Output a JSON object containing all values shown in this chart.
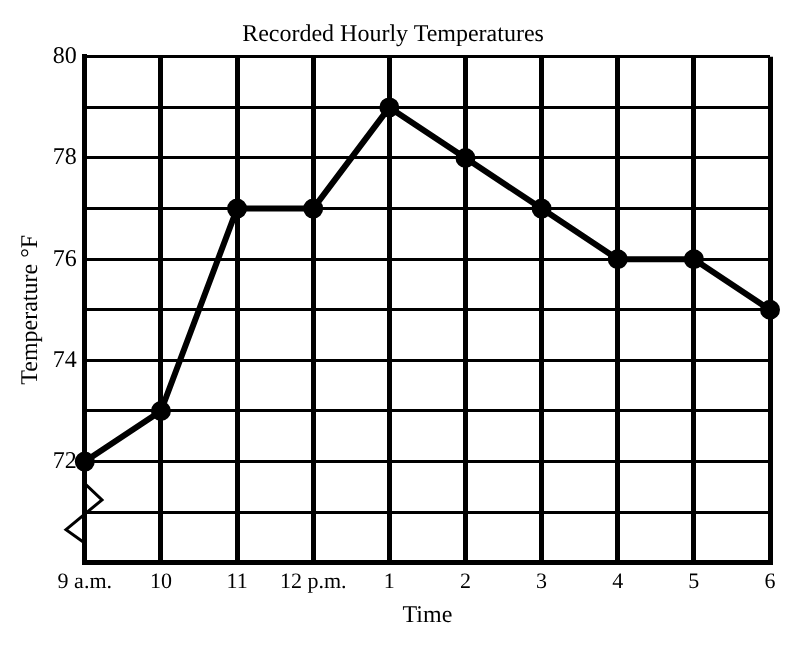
{
  "chart_data": {
    "type": "line",
    "title": "Recorded Hourly Temperatures",
    "xlabel": "Time",
    "ylabel": "Temperature °F",
    "categories": [
      "9 a.m.",
      "10",
      "11",
      "12 p.m.",
      "1",
      "2",
      "3",
      "4",
      "5",
      "6"
    ],
    "series": [
      {
        "color": "#000000",
        "values": [
          72,
          73,
          77,
          77,
          79,
          78,
          77,
          76,
          76,
          75
        ]
      }
    ],
    "ylim": [
      70,
      80
    ],
    "yticks": [
      {
        "value": 70,
        "label": null
      },
      {
        "value": 71,
        "label": null
      },
      72,
      {
        "value": 73,
        "label": null
      },
      74,
      {
        "value": 75,
        "label": null
      },
      76,
      {
        "value": 77,
        "label": null
      },
      78,
      {
        "value": 79,
        "label": null
      },
      80
    ],
    "grid": true,
    "legend": false,
    "marker": "circle",
    "line_style": "solid"
  }
}
